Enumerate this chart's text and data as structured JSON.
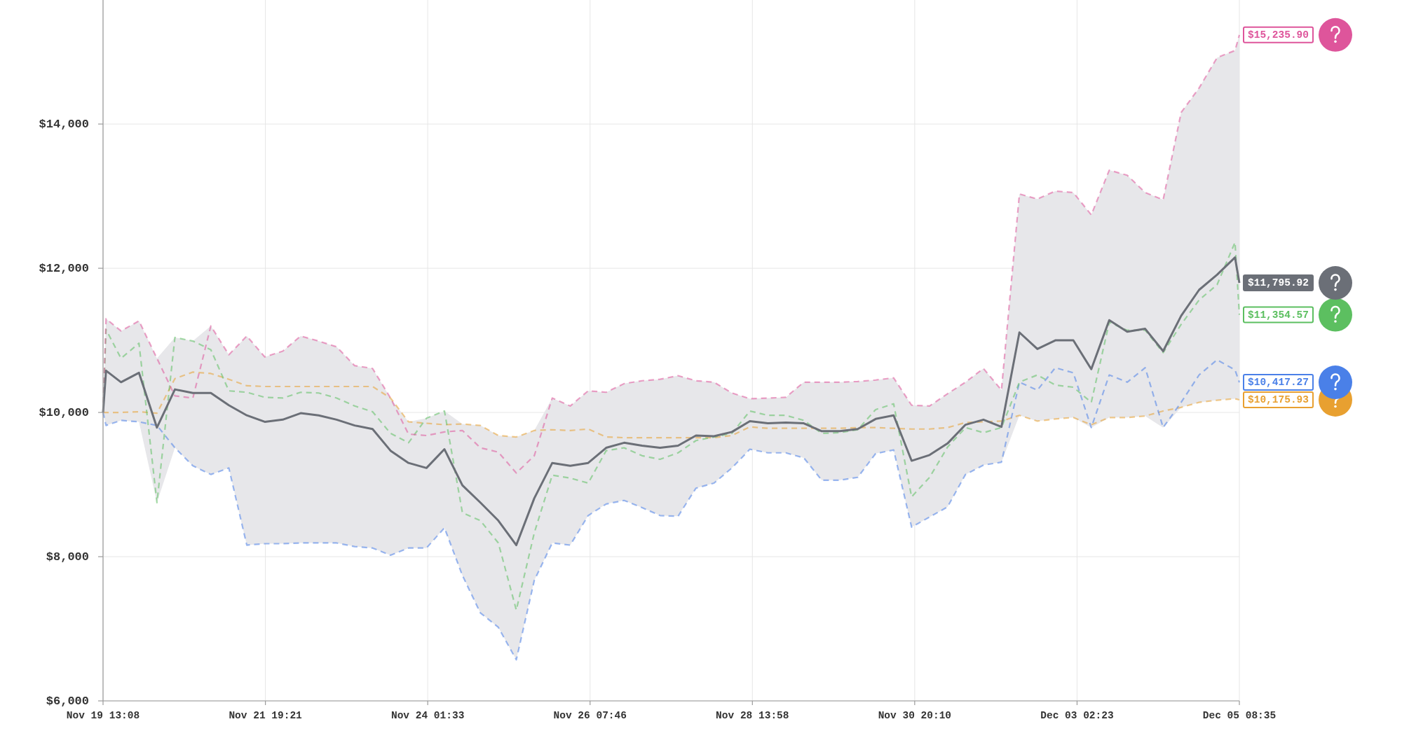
{
  "chart_data": {
    "type": "line",
    "grid": true,
    "xlim": [
      "--11-19T13:08",
      "--12-05T08:35"
    ],
    "xticks": [
      {
        "value": "--11-19T13:08",
        "label": "Nov 19 13:08"
      },
      {
        "value": "--11-21T19:21",
        "label": "Nov 21 19:21"
      },
      {
        "value": "--11-24T01:33",
        "label": "Nov 24 01:33"
      },
      {
        "value": "--11-26T07:46",
        "label": "Nov 26 07:46"
      },
      {
        "value": "--11-28T13:58",
        "label": "Nov 28 13:58"
      },
      {
        "value": "--11-30T20:10",
        "label": "Nov 30 20:10"
      },
      {
        "value": "--12-03T02:23",
        "label": "Dec 03 02:23"
      },
      {
        "value": "--12-05T08:35",
        "label": "Dec 05 08:35"
      }
    ],
    "ylim": [
      6000,
      15720
    ],
    "yticks": [
      {
        "value": 6000,
        "label": "$6,000"
      },
      {
        "value": 8000,
        "label": "$8,000"
      },
      {
        "value": 10000,
        "label": "$10,000"
      },
      {
        "value": 12000,
        "label": "$12,000"
      },
      {
        "value": 14000,
        "label": "$14,000"
      }
    ],
    "x": [
      "--11-19T13:08",
      "--11-19T14:08",
      "--11-19T19:08",
      "--11-20T01:08",
      "--11-20T07:08",
      "--11-20T13:08",
      "--11-20T19:08",
      "--11-21T01:08",
      "--11-21T07:08",
      "--11-21T13:08",
      "--11-21T19:08",
      "--11-22T01:08",
      "--11-22T07:08",
      "--11-22T13:08",
      "--11-22T19:08",
      "--11-23T01:08",
      "--11-23T07:08",
      "--11-23T13:08",
      "--11-23T19:08",
      "--11-24T01:08",
      "--11-24T07:08",
      "--11-24T13:08",
      "--11-24T19:08",
      "--11-25T01:08",
      "--11-25T07:08",
      "--11-25T13:08",
      "--11-25T19:08",
      "--11-26T01:08",
      "--11-26T07:08",
      "--11-26T13:08",
      "--11-26T19:08",
      "--11-27T01:08",
      "--11-27T07:08",
      "--11-27T13:08",
      "--11-27T19:08",
      "--11-28T01:08",
      "--11-28T07:08",
      "--11-28T13:08",
      "--11-28T19:08",
      "--11-29T01:08",
      "--11-29T07:08",
      "--11-29T13:08",
      "--11-29T19:08",
      "--11-30T01:08",
      "--11-30T07:08",
      "--11-30T13:08",
      "--11-30T19:08",
      "--12-01T01:08",
      "--12-01T07:08",
      "--12-01T13:08",
      "--12-01T19:08",
      "--12-02T01:08",
      "--12-02T07:08",
      "--12-02T13:08",
      "--12-02T19:08",
      "--12-03T01:08",
      "--12-03T07:08",
      "--12-03T13:08",
      "--12-03T19:08",
      "--12-04T01:08",
      "--12-04T07:08",
      "--12-04T13:08",
      "--12-04T19:08",
      "--12-05T01:08",
      "--12-05T07:08",
      "--12-05T08:35"
    ],
    "series": [
      {
        "color": "#e8a030",
        "line_style": "dashed",
        "values": [
          10000,
          10000,
          10000,
          10010,
          9990,
          10470,
          10560,
          10540,
          10460,
          10370,
          10360,
          10360,
          10360,
          10360,
          10360,
          10360,
          10360,
          10200,
          9870,
          9850,
          9830,
          9840,
          9820,
          9680,
          9660,
          9750,
          9760,
          9750,
          9770,
          9660,
          9650,
          9650,
          9650,
          9650,
          9650,
          9650,
          9680,
          9800,
          9780,
          9780,
          9780,
          9780,
          9780,
          9790,
          9790,
          9780,
          9770,
          9770,
          9790,
          9860,
          9870,
          9880,
          9960,
          9880,
          9910,
          9930,
          9830,
          9930,
          9930,
          9950,
          10020,
          10070,
          10140,
          10170,
          10190,
          10175.93
        ],
        "value_labels": [
          null,
          null,
          null,
          null,
          null,
          null,
          null,
          null,
          null,
          null,
          null,
          null,
          null,
          null,
          null,
          null,
          null,
          null,
          null,
          null,
          null,
          null,
          null,
          null,
          null,
          null,
          null,
          null,
          null,
          null,
          null,
          null,
          null,
          null,
          null,
          null,
          null,
          null,
          null,
          null,
          null,
          null,
          null,
          null,
          null,
          null,
          null,
          null,
          null,
          null,
          null,
          null,
          null,
          null,
          null,
          null,
          null,
          null,
          null,
          null,
          null,
          null,
          null,
          null,
          null,
          "$10,175.93"
        ]
      },
      {
        "color": "#4a80e8",
        "line_style": "dashed",
        "values": [
          10000,
          9820,
          9890,
          9870,
          9820,
          9510,
          9260,
          9140,
          9230,
          8160,
          8180,
          8180,
          8190,
          8190,
          8190,
          8140,
          8120,
          8020,
          8120,
          8120,
          8400,
          7740,
          7220,
          7020,
          6570,
          7670,
          8190,
          8160,
          8570,
          8730,
          8780,
          8680,
          8570,
          8560,
          8950,
          9020,
          9230,
          9490,
          9440,
          9440,
          9370,
          9060,
          9060,
          9100,
          9430,
          9480,
          8410,
          8550,
          8690,
          9140,
          9270,
          9310,
          10420,
          10310,
          10620,
          10550,
          9790,
          10520,
          10420,
          10620,
          9790,
          10140,
          10520,
          10730,
          10590,
          10417.27
        ],
        "value_labels": [
          null,
          null,
          null,
          null,
          null,
          null,
          null,
          null,
          null,
          null,
          null,
          null,
          null,
          null,
          null,
          null,
          null,
          null,
          null,
          null,
          null,
          null,
          null,
          null,
          null,
          null,
          null,
          null,
          null,
          null,
          null,
          null,
          null,
          null,
          null,
          null,
          null,
          null,
          null,
          null,
          null,
          null,
          null,
          null,
          null,
          null,
          null,
          null,
          null,
          null,
          null,
          null,
          null,
          null,
          null,
          null,
          null,
          null,
          null,
          null,
          null,
          null,
          null,
          null,
          null,
          "$10,417.27"
        ]
      },
      {
        "color": "#5cbf60",
        "line_style": "dashed",
        "values": [
          10000,
          11150,
          10750,
          10960,
          8750,
          11040,
          10990,
          10870,
          10300,
          10280,
          10210,
          10200,
          10280,
          10270,
          10200,
          10090,
          10010,
          9710,
          9580,
          9920,
          10020,
          8610,
          8500,
          8190,
          7260,
          8330,
          9130,
          9090,
          9020,
          9470,
          9510,
          9400,
          9350,
          9440,
          9610,
          9660,
          9710,
          10020,
          9960,
          9960,
          9890,
          9710,
          9720,
          9760,
          10040,
          10120,
          8830,
          9100,
          9520,
          9790,
          9720,
          9790,
          10420,
          10520,
          10380,
          10350,
          10140,
          11250,
          11140,
          11140,
          10830,
          11220,
          11560,
          11770,
          12360,
          11354.57
        ],
        "value_labels": [
          null,
          null,
          null,
          null,
          null,
          null,
          null,
          null,
          null,
          null,
          null,
          null,
          null,
          null,
          null,
          null,
          null,
          null,
          null,
          null,
          null,
          null,
          null,
          null,
          null,
          null,
          null,
          null,
          null,
          null,
          null,
          null,
          null,
          null,
          null,
          null,
          null,
          null,
          null,
          null,
          null,
          null,
          null,
          null,
          null,
          null,
          null,
          null,
          null,
          null,
          null,
          null,
          null,
          null,
          null,
          null,
          null,
          null,
          null,
          null,
          null,
          null,
          null,
          null,
          null,
          "$11,354.57"
        ]
      },
      {
        "color": "#de559b",
        "line_style": "dashed",
        "values": [
          10000,
          11300,
          11130,
          11270,
          10750,
          10230,
          10200,
          11200,
          10800,
          11060,
          10770,
          10850,
          11060,
          10990,
          10910,
          10650,
          10610,
          10200,
          9700,
          9680,
          9730,
          9750,
          9510,
          9450,
          9160,
          9400,
          10200,
          10090,
          10300,
          10280,
          10400,
          10440,
          10460,
          10510,
          10440,
          10420,
          10270,
          10190,
          10200,
          10210,
          10420,
          10420,
          10420,
          10430,
          10450,
          10480,
          10100,
          10090,
          10260,
          10420,
          10610,
          10310,
          13030,
          12960,
          13070,
          13050,
          12740,
          13360,
          13290,
          13050,
          12950,
          14160,
          14500,
          14920,
          15020,
          15235.9
        ],
        "value_labels": [
          null,
          null,
          null,
          null,
          null,
          null,
          null,
          null,
          null,
          null,
          null,
          null,
          null,
          null,
          null,
          null,
          null,
          null,
          null,
          null,
          null,
          null,
          null,
          null,
          null,
          null,
          null,
          null,
          null,
          null,
          null,
          null,
          null,
          null,
          null,
          null,
          null,
          null,
          null,
          null,
          null,
          null,
          null,
          null,
          null,
          null,
          null,
          null,
          null,
          null,
          null,
          null,
          null,
          null,
          null,
          null,
          null,
          null,
          null,
          null,
          null,
          null,
          null,
          null,
          null,
          "$15,235.90"
        ]
      },
      {
        "color": "#6b6f77",
        "line_style": "solid",
        "values": [
          10000,
          10580,
          10420,
          10550,
          9790,
          10320,
          10270,
          10270,
          10100,
          9960,
          9870,
          9900,
          9990,
          9960,
          9900,
          9820,
          9770,
          9470,
          9300,
          9230,
          9490,
          8990,
          8750,
          8500,
          8160,
          8810,
          9300,
          9260,
          9300,
          9510,
          9580,
          9540,
          9510,
          9540,
          9680,
          9670,
          9730,
          9880,
          9850,
          9860,
          9850,
          9740,
          9740,
          9770,
          9910,
          9960,
          9330,
          9410,
          9570,
          9830,
          9900,
          9800,
          11110,
          10880,
          11000,
          11000,
          10600,
          11280,
          11120,
          11160,
          10850,
          11340,
          11700,
          11910,
          12150,
          11795.92
        ],
        "lower": [
          10000,
          9820,
          9890,
          9870,
          8750,
          9510,
          9260,
          9140,
          9230,
          8160,
          8180,
          8180,
          8190,
          8190,
          8190,
          8140,
          8120,
          8020,
          8120,
          8120,
          8400,
          7740,
          7220,
          7020,
          6570,
          7670,
          8190,
          8160,
          8570,
          8730,
          8780,
          8680,
          8570,
          8560,
          8950,
          9020,
          9230,
          9490,
          9440,
          9440,
          9370,
          9060,
          9060,
          9100,
          9430,
          9480,
          8410,
          8550,
          8690,
          9140,
          9270,
          9310,
          9960,
          9880,
          9910,
          9930,
          9790,
          9930,
          9930,
          9950,
          9790,
          10070,
          10140,
          10170,
          10190,
          10175.93
        ],
        "upper": [
          10000,
          11300,
          11130,
          11270,
          10750,
          11040,
          10990,
          11200,
          10800,
          11060,
          10770,
          10850,
          11060,
          10990,
          10910,
          10650,
          10610,
          10200,
          9870,
          9920,
          10020,
          9840,
          9820,
          9680,
          9660,
          9750,
          10200,
          10090,
          10300,
          10280,
          10400,
          10440,
          10460,
          10510,
          10440,
          10420,
          10270,
          10190,
          10200,
          10210,
          10420,
          10420,
          10420,
          10430,
          10450,
          10480,
          10100,
          10090,
          10260,
          10420,
          10610,
          10310,
          13030,
          12960,
          13070,
          13050,
          12740,
          13360,
          13290,
          13050,
          12950,
          14160,
          14500,
          14920,
          15020,
          15235.9
        ],
        "value_labels": [
          null,
          null,
          null,
          null,
          null,
          null,
          null,
          null,
          null,
          null,
          null,
          null,
          null,
          null,
          null,
          null,
          null,
          null,
          null,
          null,
          null,
          null,
          null,
          null,
          null,
          null,
          null,
          null,
          null,
          null,
          null,
          null,
          null,
          null,
          null,
          null,
          null,
          null,
          null,
          null,
          null,
          null,
          null,
          null,
          null,
          null,
          null,
          null,
          null,
          null,
          null,
          null,
          null,
          null,
          null,
          null,
          null,
          null,
          null,
          null,
          null,
          null,
          null,
          null,
          null,
          "$11,795.92"
        ]
      }
    ]
  }
}
